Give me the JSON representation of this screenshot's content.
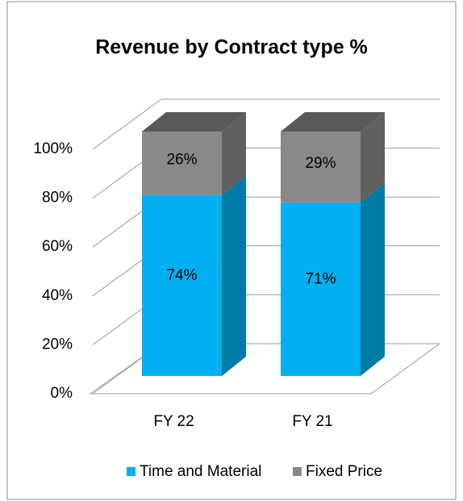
{
  "chart_data": {
    "type": "bar3d_stacked",
    "title": "Revenue by Contract type %",
    "categories": [
      "FY 22",
      "FY 21"
    ],
    "series": [
      {
        "name": "Time and Material",
        "color": "#00b0f0",
        "values": [
          74,
          71
        ],
        "value_labels": [
          "74%",
          "71%"
        ]
      },
      {
        "name": "Fixed Price",
        "color": "#898989",
        "values": [
          26,
          29
        ],
        "value_labels": [
          "26%",
          "29%"
        ]
      }
    ],
    "ylim": [
      0,
      100
    ],
    "yticks": [
      {
        "value": 0,
        "label": "0%"
      },
      {
        "value": 20,
        "label": "20%"
      },
      {
        "value": 40,
        "label": "40%"
      },
      {
        "value": 60,
        "label": "60%"
      },
      {
        "value": 80,
        "label": "80%"
      },
      {
        "value": 100,
        "label": "100%"
      }
    ],
    "grid": true,
    "legend": "bottom"
  }
}
